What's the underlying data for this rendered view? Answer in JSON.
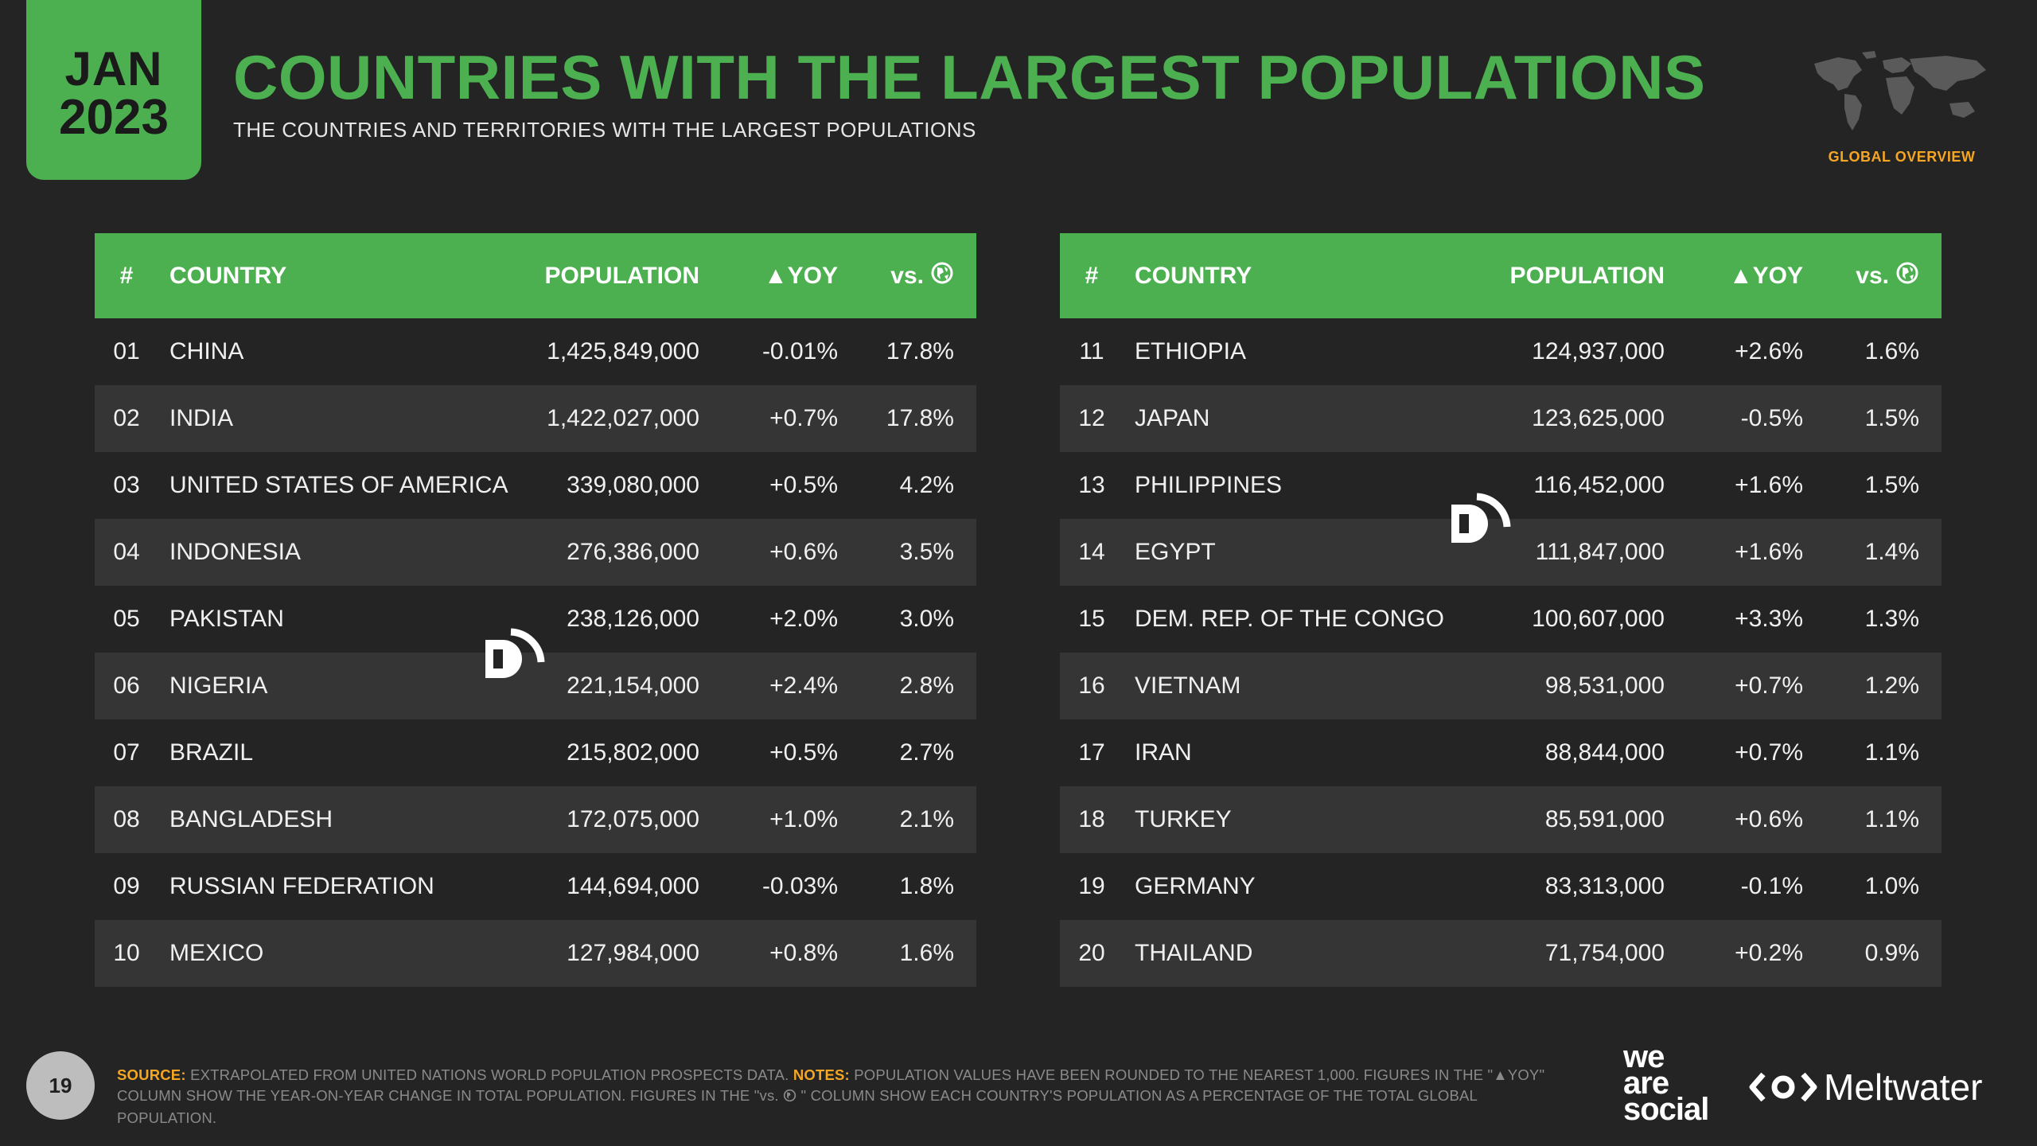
{
  "badge": {
    "month": "JAN",
    "year": "2023"
  },
  "title": "COUNTRIES WITH THE LARGEST POPULATIONS",
  "subtitle": "THE COUNTRIES AND TERRITORIES WITH THE LARGEST POPULATIONS",
  "global_label": "GLOBAL OVERVIEW",
  "table_headers": {
    "rank": "#",
    "country": "COUNTRY",
    "population": "POPULATION",
    "yoy": "▲YOY",
    "share": "vs."
  },
  "left_rows": [
    {
      "rank": "01",
      "country": "CHINA",
      "population": "1,425,849,000",
      "yoy": "-0.01%",
      "share": "17.8%"
    },
    {
      "rank": "02",
      "country": "INDIA",
      "population": "1,422,027,000",
      "yoy": "+0.7%",
      "share": "17.8%"
    },
    {
      "rank": "03",
      "country": "UNITED STATES OF AMERICA",
      "population": "339,080,000",
      "yoy": "+0.5%",
      "share": "4.2%"
    },
    {
      "rank": "04",
      "country": "INDONESIA",
      "population": "276,386,000",
      "yoy": "+0.6%",
      "share": "3.5%"
    },
    {
      "rank": "05",
      "country": "PAKISTAN",
      "population": "238,126,000",
      "yoy": "+2.0%",
      "share": "3.0%"
    },
    {
      "rank": "06",
      "country": "NIGERIA",
      "population": "221,154,000",
      "yoy": "+2.4%",
      "share": "2.8%"
    },
    {
      "rank": "07",
      "country": "BRAZIL",
      "population": "215,802,000",
      "yoy": "+0.5%",
      "share": "2.7%"
    },
    {
      "rank": "08",
      "country": "BANGLADESH",
      "population": "172,075,000",
      "yoy": "+1.0%",
      "share": "2.1%"
    },
    {
      "rank": "09",
      "country": "RUSSIAN FEDERATION",
      "population": "144,694,000",
      "yoy": "-0.03%",
      "share": "1.8%"
    },
    {
      "rank": "10",
      "country": "MEXICO",
      "population": "127,984,000",
      "yoy": "+0.8%",
      "share": "1.6%"
    }
  ],
  "right_rows": [
    {
      "rank": "11",
      "country": "ETHIOPIA",
      "population": "124,937,000",
      "yoy": "+2.6%",
      "share": "1.6%"
    },
    {
      "rank": "12",
      "country": "JAPAN",
      "population": "123,625,000",
      "yoy": "-0.5%",
      "share": "1.5%"
    },
    {
      "rank": "13",
      "country": "PHILIPPINES",
      "population": "116,452,000",
      "yoy": "+1.6%",
      "share": "1.5%"
    },
    {
      "rank": "14",
      "country": "EGYPT",
      "population": "111,847,000",
      "yoy": "+1.6%",
      "share": "1.4%"
    },
    {
      "rank": "15",
      "country": "DEM. REP. OF THE CONGO",
      "population": "100,607,000",
      "yoy": "+3.3%",
      "share": "1.3%"
    },
    {
      "rank": "16",
      "country": "VIETNAM",
      "population": "98,531,000",
      "yoy": "+0.7%",
      "share": "1.2%"
    },
    {
      "rank": "17",
      "country": "IRAN",
      "population": "88,844,000",
      "yoy": "+0.7%",
      "share": "1.1%"
    },
    {
      "rank": "18",
      "country": "TURKEY",
      "population": "85,591,000",
      "yoy": "+0.6%",
      "share": "1.1%"
    },
    {
      "rank": "19",
      "country": "GERMANY",
      "population": "83,313,000",
      "yoy": "-0.1%",
      "share": "1.0%"
    },
    {
      "rank": "20",
      "country": "THAILAND",
      "population": "71,754,000",
      "yoy": "+0.2%",
      "share": "0.9%"
    }
  ],
  "page_number": "19",
  "footer": {
    "source_key": "SOURCE:",
    "source_text": "EXTRAPOLATED FROM UNITED NATIONS WORLD POPULATION PROSPECTS DATA.",
    "notes_key": "NOTES:",
    "notes_text_1": "POPULATION VALUES HAVE BEEN ROUNDED TO THE NEAREST 1,000. FIGURES IN THE \"▲YOY\" COLUMN SHOW THE YEAR-ON-YEAR CHANGE IN TOTAL POPULATION. FIGURES IN THE \"vs.",
    "notes_text_2": "\" COLUMN SHOW EACH COUNTRY'S POPULATION AS A PERCENTAGE OF THE TOTAL GLOBAL POPULATION."
  },
  "brand_was": {
    "line1": "we",
    "line2": "are",
    "line3": "social"
  },
  "brand_meltwater": "Meltwater",
  "colors": {
    "accent_green": "#4caf50",
    "accent_orange": "#f5a623",
    "background": "#242424"
  }
}
